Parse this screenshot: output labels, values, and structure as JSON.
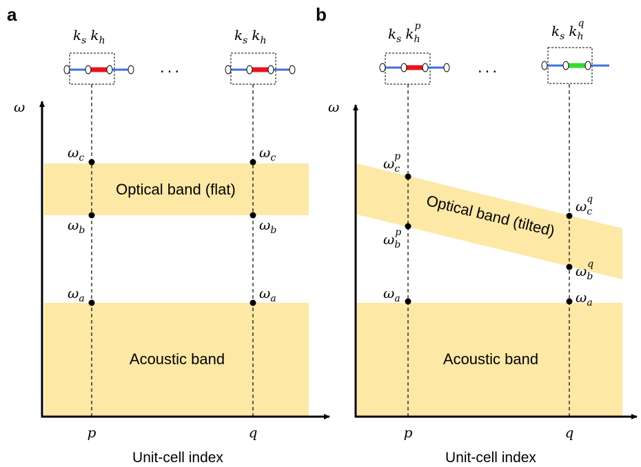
{
  "panel_a": {
    "letter": "a",
    "cell_p_label_ks": "k",
    "cell_p_label_ks_sub": "s",
    "cell_p_label_kh": "k",
    "cell_p_label_kh_sub": "h",
    "cell_q_label_ks": "k",
    "cell_q_label_ks_sub": "s",
    "cell_q_label_kh": "k",
    "cell_q_label_kh_sub": "h",
    "ellipsis": "...",
    "y_axis_label": "ω",
    "optical_band": "Optical band (flat)",
    "acoustic_band": "Acoustic band",
    "omega_c_p": "ω",
    "omega_c_p_sub": "c",
    "omega_c_q": "ω",
    "omega_c_q_sub": "c",
    "omega_b_p": "ω",
    "omega_b_p_sub": "b",
    "omega_b_q": "ω",
    "omega_b_q_sub": "b",
    "omega_a_p": "ω",
    "omega_a_p_sub": "a",
    "omega_a_q": "ω",
    "omega_a_q_sub": "a",
    "tick_p": "p",
    "tick_q": "q",
    "x_axis_title": "Unit-cell index"
  },
  "panel_b": {
    "letter": "b",
    "cell_p_label_ks": "k",
    "cell_p_label_ks_sub": "s",
    "cell_p_label_kh": "k",
    "cell_p_label_kh_sub": "h",
    "cell_p_label_kh_sup": "p",
    "cell_q_label_ks": "k",
    "cell_q_label_ks_sub": "s",
    "cell_q_label_kh": "k",
    "cell_q_label_kh_sub": "h",
    "cell_q_label_kh_sup": "q",
    "ellipsis": "...",
    "y_axis_label": "ω",
    "optical_band": "Optical band (tilted)",
    "acoustic_band": "Acoustic band",
    "omega_c_p": "ω",
    "omega_c_p_sub": "c",
    "omega_c_p_sup": "p",
    "omega_c_q": "ω",
    "omega_c_q_sub": "c",
    "omega_c_q_sup": "q",
    "omega_b_p": "ω",
    "omega_b_p_sub": "b",
    "omega_b_p_sup": "p",
    "omega_b_q": "ω",
    "omega_b_q_sub": "b",
    "omega_b_q_sup": "q",
    "omega_a_p": "ω",
    "omega_a_p_sub": "a",
    "omega_a_q": "ω",
    "omega_a_q_sub": "a",
    "tick_p": "p",
    "tick_q": "q",
    "x_axis_title": "Unit-cell index"
  },
  "colors": {
    "band_fill": "#fde8a6",
    "spring_soft": "#3f6fd8",
    "spring_hard_p": "#e8141c",
    "spring_hard_q_a": "#e8141c",
    "spring_hard_q_b": "#33dd33",
    "axis": "#000000"
  }
}
